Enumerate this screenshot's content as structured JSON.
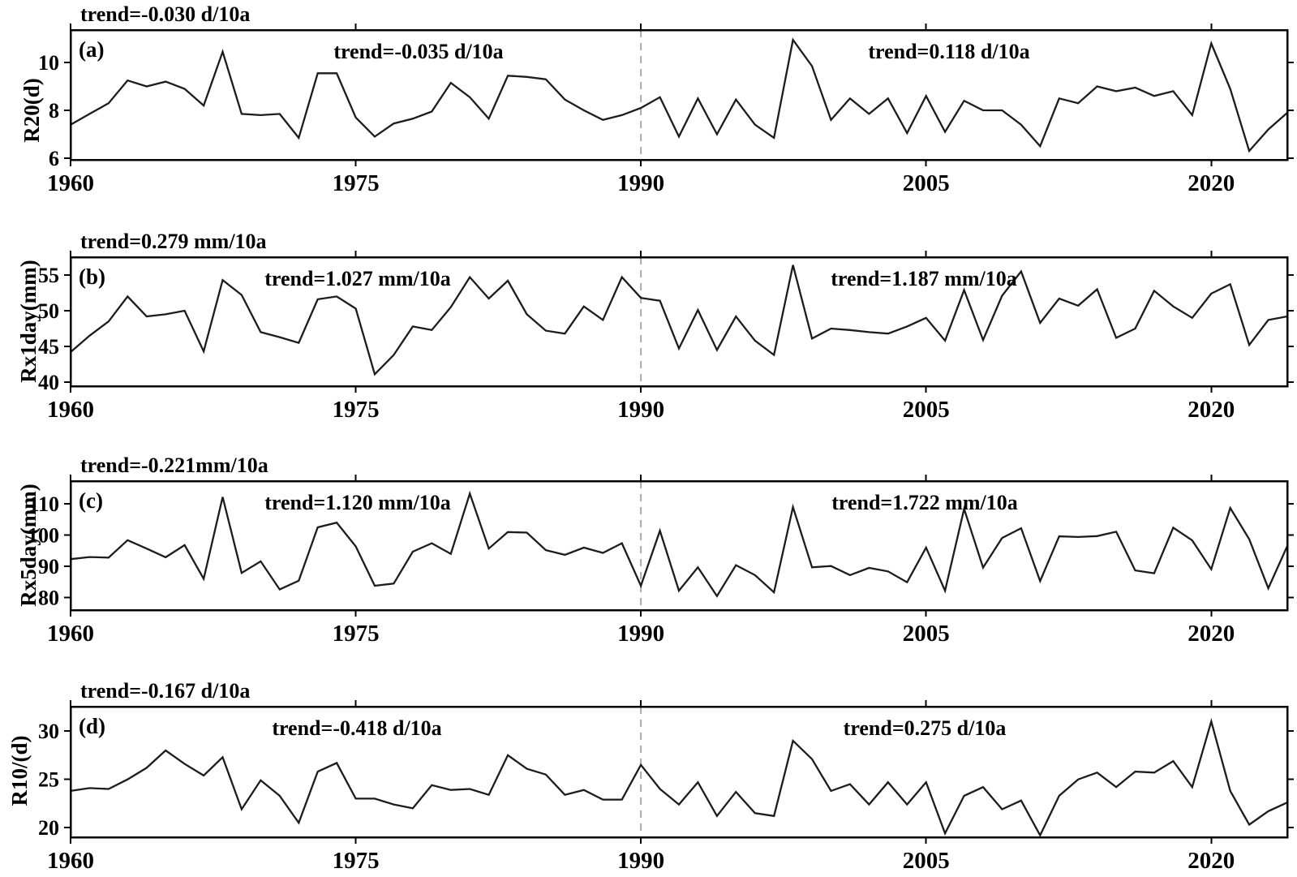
{
  "figure": {
    "background": "#ffffff",
    "line_color": "#1c1c1c",
    "frame_color": "#000000",
    "dashed_line_color": "#a9a9a9"
  },
  "x_axis": {
    "start_year": 1960,
    "end_year": 2024,
    "ticks": [
      1960,
      1975,
      1990,
      2005,
      2020
    ],
    "dashed_year": 1990
  },
  "chart_data": [
    {
      "type": "line",
      "panel_label": "(a)",
      "ylabel": "R20(d)",
      "title_trend": "trend=-0.030 d/10a",
      "left_trend": "trend=-0.035 d/10a",
      "right_trend": "trend=0.118 d/10a",
      "yticks": [
        6,
        8,
        10
      ],
      "ylim": [
        5.93,
        11.36
      ],
      "x_range": [
        1960,
        2024
      ],
      "values": [
        7.4,
        7.85,
        8.3,
        9.25,
        9.0,
        9.2,
        8.9,
        8.2,
        10.45,
        7.85,
        7.8,
        7.85,
        6.85,
        9.55,
        9.55,
        7.7,
        6.9,
        7.45,
        7.65,
        7.95,
        9.15,
        8.55,
        7.65,
        9.45,
        9.4,
        9.3,
        8.45,
        8.0,
        7.6,
        7.8,
        8.1,
        8.55,
        6.9,
        8.5,
        7.0,
        8.45,
        7.4,
        6.85,
        10.95,
        9.85,
        7.6,
        8.5,
        7.85,
        8.5,
        7.05,
        8.6,
        7.1,
        8.4,
        8.0,
        8.0,
        7.4,
        6.5,
        8.5,
        8.3,
        9.0,
        8.8,
        8.95,
        8.6,
        8.8,
        7.8,
        10.8,
        8.9,
        6.3,
        7.2,
        7.9
      ]
    },
    {
      "type": "line",
      "panel_label": "(b)",
      "ylabel": "Rx1day(mm)",
      "title_trend": "trend=0.279 mm/10a",
      "left_trend": "trend=1.027 mm/10a",
      "right_trend": "trend=1.187 mm/10a",
      "yticks": [
        40,
        45,
        50,
        55
      ],
      "ylim": [
        39.43,
        57.5
      ],
      "x_range": [
        1960,
        2024
      ],
      "values": [
        44.2,
        46.5,
        48.5,
        52.0,
        49.2,
        49.5,
        50.0,
        44.3,
        54.3,
        52.2,
        47.0,
        46.3,
        45.5,
        51.6,
        52.0,
        50.3,
        41.1,
        43.8,
        47.8,
        47.3,
        50.5,
        54.7,
        51.7,
        54.2,
        49.5,
        47.2,
        46.8,
        50.6,
        48.7,
        54.7,
        51.8,
        51.4,
        44.7,
        50.1,
        44.5,
        49.2,
        45.8,
        43.8,
        56.4,
        46.1,
        47.5,
        47.3,
        47.0,
        46.8,
        47.8,
        49.0,
        45.8,
        52.9,
        45.9,
        52.1,
        55.5,
        48.3,
        51.7,
        50.7,
        53.0,
        46.2,
        47.5,
        52.8,
        50.6,
        49.0,
        52.4,
        53.7,
        45.2,
        48.7,
        49.2
      ]
    },
    {
      "type": "line",
      "panel_label": "(c)",
      "ylabel": "Rx5day(mm)",
      "title_trend": "trend=-0.221mm/10a",
      "left_trend": "trend=1.120 mm/10a",
      "right_trend": "trend=1.722 mm/10a",
      "yticks": [
        80,
        90,
        100,
        110
      ],
      "ylim": [
        76.0,
        117.3
      ],
      "x_range": [
        1960,
        2024
      ],
      "values": [
        92.3,
        93.0,
        92.8,
        98.4,
        95.7,
        92.9,
        96.8,
        86.0,
        112.2,
        87.9,
        91.6,
        82.6,
        85.4,
        102.5,
        104.0,
        96.4,
        83.8,
        84.5,
        94.7,
        97.4,
        94.0,
        113.3,
        95.7,
        101.0,
        100.8,
        95.2,
        93.7,
        96.0,
        94.3,
        97.4,
        83.8,
        101.4,
        82.2,
        89.7,
        80.5,
        90.4,
        87.2,
        81.7,
        109.0,
        89.7,
        90.1,
        87.2,
        89.5,
        88.4,
        84.9,
        96.0,
        82.2,
        108.4,
        89.6,
        99.1,
        102.2,
        85.3,
        99.6,
        99.4,
        99.7,
        101.1,
        88.7,
        87.8,
        102.4,
        98.3,
        89.1,
        108.7,
        98.7,
        83.0,
        96.5
      ]
    },
    {
      "type": "line",
      "panel_label": "(d)",
      "ylabel": "R10/(d)",
      "title_trend": "trend=-0.167 d/10a",
      "left_trend": "trend=-0.418 d/10a",
      "right_trend": "trend=0.275 d/10a",
      "yticks": [
        20,
        25,
        30
      ],
      "ylim": [
        19.0,
        32.54
      ],
      "x_range": [
        1960,
        2024
      ],
      "values": [
        23.8,
        24.1,
        24.0,
        25.0,
        26.2,
        28.0,
        26.6,
        25.4,
        27.3,
        21.9,
        24.9,
        23.3,
        20.5,
        25.8,
        26.7,
        23.0,
        23.0,
        22.4,
        22.0,
        24.4,
        23.9,
        24.0,
        23.4,
        27.5,
        26.1,
        25.5,
        23.4,
        23.9,
        22.9,
        22.9,
        26.5,
        24.0,
        22.4,
        24.7,
        21.2,
        23.7,
        21.5,
        21.2,
        29.0,
        27.1,
        23.8,
        24.5,
        22.4,
        24.7,
        22.4,
        24.7,
        19.4,
        23.3,
        24.2,
        21.9,
        22.8,
        19.2,
        23.3,
        25.0,
        25.7,
        24.2,
        25.8,
        25.7,
        26.9,
        24.2,
        31.0,
        23.8,
        20.3,
        21.7,
        22.6
      ]
    }
  ]
}
